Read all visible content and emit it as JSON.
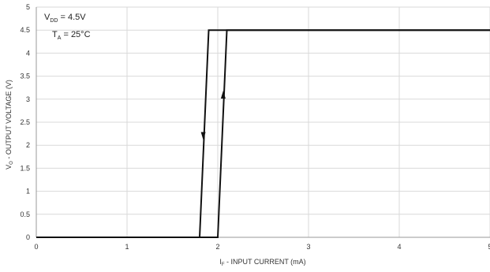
{
  "chart_data": {
    "type": "line",
    "xlabel_main": "I",
    "xlabel_sub": "F",
    "xlabel_rest": " - INPUT CURRENT (mA)",
    "ylabel_main": "V",
    "ylabel_sub": "O",
    "ylabel_rest": " - OUTPUT VOLTAGE (V)",
    "xlim": [
      0,
      5
    ],
    "ylim": [
      0,
      5
    ],
    "x_ticks": [
      "0",
      "1",
      "2",
      "3",
      "4",
      "5"
    ],
    "y_ticks": [
      "0",
      "0.5",
      "1",
      "1.5",
      "2",
      "2.5",
      "3",
      "3.5",
      "4",
      "4.5",
      "5"
    ],
    "grid": true,
    "line_color": "#111111",
    "annotations": [
      {
        "main": "V",
        "sub": "DD",
        "rest": " = 4.5V"
      },
      {
        "main": "T",
        "sub": "A",
        "rest": " = 25°C"
      }
    ],
    "series": [
      {
        "x": [
          0,
          2.0,
          2.1,
          5
        ],
        "y": [
          0,
          0,
          4.5,
          4.5
        ],
        "arrow_at": {
          "x": 2.06,
          "y": 3.1,
          "dir": "up"
        }
      },
      {
        "x": [
          0,
          1.8,
          1.9,
          5
        ],
        "y": [
          0,
          0,
          4.5,
          4.5
        ],
        "arrow_at": {
          "x": 1.84,
          "y": 2.2,
          "dir": "down"
        }
      }
    ]
  }
}
